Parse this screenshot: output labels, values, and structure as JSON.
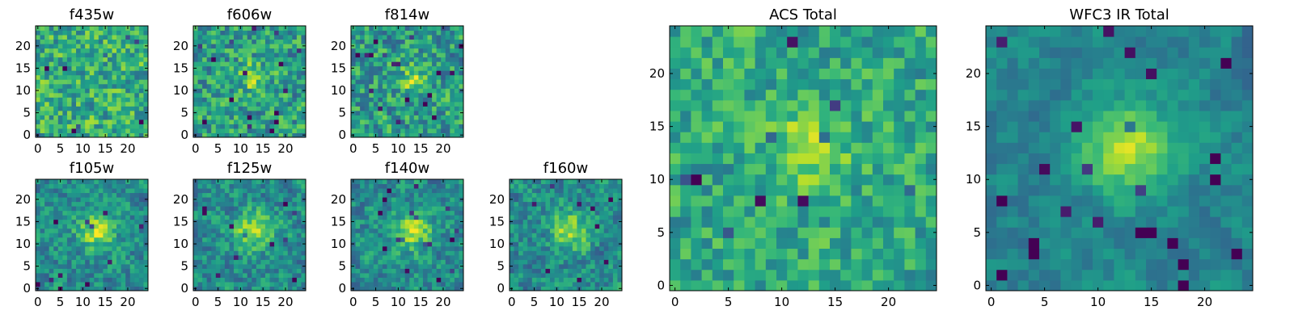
{
  "chart_data": [
    {
      "type": "heatmap",
      "title": "f435w",
      "image_size": 25,
      "xticks": [
        0,
        5,
        10,
        15,
        20
      ],
      "yticks": [
        0,
        5,
        10,
        15,
        20
      ],
      "colormap": "viridis",
      "source": "none",
      "seed": 3
    },
    {
      "type": "heatmap",
      "title": "f606w",
      "image_size": 25,
      "xticks": [
        0,
        5,
        10,
        15,
        20
      ],
      "yticks": [
        0,
        5,
        10,
        15,
        20
      ],
      "colormap": "viridis",
      "source": "faint",
      "seed": 7
    },
    {
      "type": "heatmap",
      "title": "f814w",
      "image_size": 25,
      "xticks": [
        0,
        5,
        10,
        15,
        20
      ],
      "yticks": [
        0,
        5,
        10,
        15,
        20
      ],
      "colormap": "viridis",
      "source": "faint",
      "seed": 11
    },
    {
      "type": "heatmap",
      "title": "f105w",
      "image_size": 25,
      "xticks": [
        0,
        5,
        10,
        15,
        20
      ],
      "yticks": [
        0,
        5,
        10,
        15,
        20
      ],
      "colormap": "viridis",
      "source": "medium",
      "seed": 19
    },
    {
      "type": "heatmap",
      "title": "f125w",
      "image_size": 25,
      "xticks": [
        0,
        5,
        10,
        15,
        20
      ],
      "yticks": [
        0,
        5,
        10,
        15,
        20
      ],
      "colormap": "viridis",
      "source": "medium",
      "seed": 23
    },
    {
      "type": "heatmap",
      "title": "f140w",
      "image_size": 25,
      "xticks": [
        0,
        5,
        10,
        15,
        20
      ],
      "yticks": [
        0,
        5,
        10,
        15,
        20
      ],
      "colormap": "viridis",
      "source": "medium",
      "seed": 29
    },
    {
      "type": "heatmap",
      "title": "f160w",
      "image_size": 25,
      "xticks": [
        0,
        5,
        10,
        15,
        20
      ],
      "yticks": [
        0,
        5,
        10,
        15,
        20
      ],
      "colormap": "viridis",
      "source": "medium",
      "seed": 31
    },
    {
      "type": "heatmap",
      "title": "ACS Total",
      "image_size": 25,
      "xticks": [
        0,
        5,
        10,
        15,
        20
      ],
      "yticks": [
        0,
        5,
        10,
        15,
        20
      ],
      "colormap": "viridis",
      "source": "acs",
      "seed": 41
    },
    {
      "type": "heatmap",
      "title": "WFC3 IR Total",
      "image_size": 25,
      "xticks": [
        0,
        5,
        10,
        15,
        20
      ],
      "yticks": [
        0,
        5,
        10,
        15,
        20
      ],
      "colormap": "viridis",
      "source": "ir",
      "seed": 53
    }
  ]
}
